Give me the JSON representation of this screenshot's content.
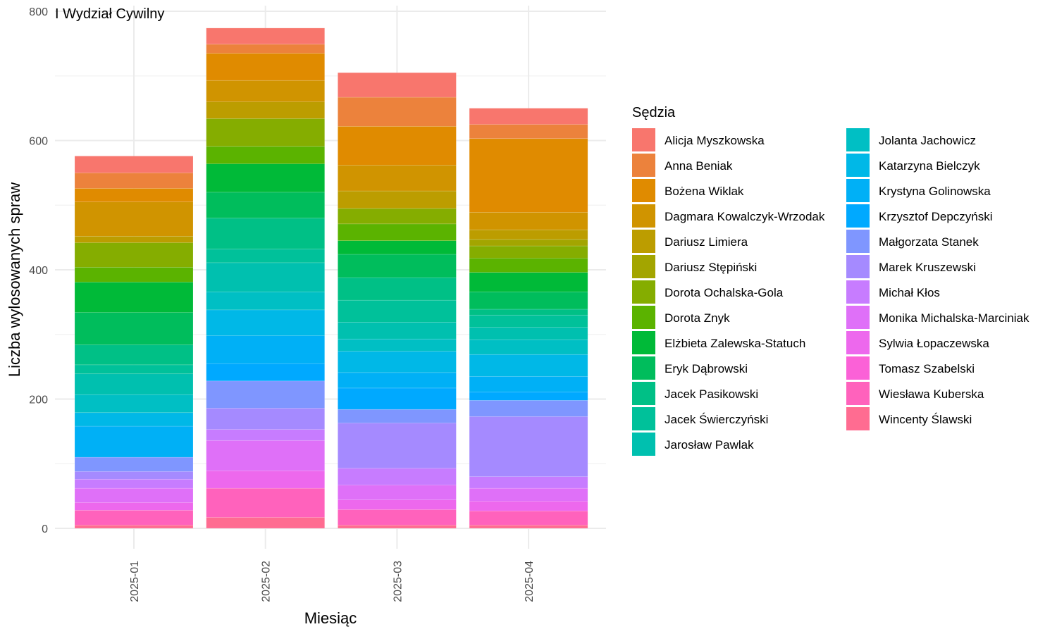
{
  "chart_data": {
    "type": "bar",
    "stacked": true,
    "title": "I Wydział Cywilny",
    "xlabel": "Miesiąc",
    "ylabel": "Liczba wylosowanych spraw",
    "ylim": [
      0,
      800
    ],
    "yticks": [
      0,
      200,
      400,
      600,
      800
    ],
    "grid": true,
    "legend_title": "Sędzia",
    "legend_position": "right",
    "categories": [
      "2025-01",
      "2025-02",
      "2025-03",
      "2025-04"
    ],
    "series": [
      {
        "name": "Alicja Myszkowska",
        "color": "#F8766D",
        "values": [
          26,
          25,
          38,
          25
        ]
      },
      {
        "name": "Anna Beniak",
        "color": "#EC823C",
        "values": [
          24,
          14,
          45,
          22
        ]
      },
      {
        "name": "Bożena Wiklak",
        "color": "#E08B00",
        "values": [
          21,
          42,
          60,
          114
        ]
      },
      {
        "name": "Dagmara Kowalczyk-Wrzodak",
        "color": "#D09400",
        "values": [
          53,
          33,
          40,
          27
        ]
      },
      {
        "name": "Dariusz Limiera",
        "color": "#BC9D00",
        "values": [
          10,
          26,
          27,
          15
        ]
      },
      {
        "name": "Dariusz Stępiński",
        "color": "#A3A500",
        "values": [
          0,
          0,
          0,
          10
        ]
      },
      {
        "name": "Dorota Ochalska-Gola",
        "color": "#85AD00",
        "values": [
          38,
          43,
          24,
          19
        ]
      },
      {
        "name": "Dorota Znyk",
        "color": "#5BB300",
        "values": [
          23,
          27,
          26,
          22
        ]
      },
      {
        "name": "Elżbieta Zalewska-Statuch",
        "color": "#00BA38",
        "values": [
          47,
          44,
          21,
          30
        ]
      },
      {
        "name": "Eryk Dąbrowski",
        "color": "#00BD5C",
        "values": [
          50,
          40,
          36,
          27
        ]
      },
      {
        "name": "Jacek Pasikowski",
        "color": "#00C086",
        "values": [
          31,
          48,
          35,
          9
        ]
      },
      {
        "name": "Jacek Świerczyński",
        "color": "#00C19A",
        "values": [
          14,
          21,
          34,
          19
        ]
      },
      {
        "name": "Jarosław Pawlak",
        "color": "#00C0AF",
        "values": [
          32,
          45,
          26,
          19
        ]
      },
      {
        "name": "Jolanta Jachowicz",
        "color": "#00BFC4",
        "values": [
          28,
          28,
          19,
          23
        ]
      },
      {
        "name": "Katarzyna Bielczyk",
        "color": "#00B8E7",
        "values": [
          21,
          40,
          33,
          34
        ]
      },
      {
        "name": "Krystyna Golinowska",
        "color": "#00B0F6",
        "values": [
          48,
          43,
          24,
          24
        ]
      },
      {
        "name": "Krzysztof Depczyński",
        "color": "#00A9FF",
        "values": [
          0,
          27,
          33,
          13
        ]
      },
      {
        "name": "Małgorzata Stanek",
        "color": "#7F96FF",
        "values": [
          22,
          42,
          21,
          25
        ]
      },
      {
        "name": "Marek Kruszewski",
        "color": "#A58AFF",
        "values": [
          12,
          33,
          70,
          93
        ]
      },
      {
        "name": "Michał Kłos",
        "color": "#C77CFF",
        "values": [
          14,
          17,
          26,
          18
        ]
      },
      {
        "name": "Monika Michalska-Marciniak",
        "color": "#DF70F8",
        "values": [
          22,
          47,
          23,
          20
        ]
      },
      {
        "name": "Sylwia Łopaczewska",
        "color": "#ED68ED",
        "values": [
          12,
          27,
          15,
          15
        ]
      },
      {
        "name": "Tomasz Szabelski",
        "color": "#FB61D7",
        "values": [
          0,
          0,
          0,
          0
        ]
      },
      {
        "name": "Wiesława Kuberska",
        "color": "#FF62BC",
        "values": [
          23,
          45,
          24,
          22
        ]
      },
      {
        "name": "Wincenty Ślawski",
        "color": "#FF6C91",
        "values": [
          5,
          17,
          5,
          5
        ]
      }
    ]
  }
}
